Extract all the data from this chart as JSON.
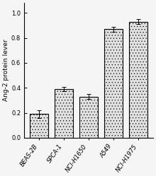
{
  "categories": [
    "BEAS-2B",
    "SPCA-1",
    "NCI-H1650",
    "A549",
    "NCI-H1975"
  ],
  "values": [
    0.19,
    0.39,
    0.33,
    0.87,
    0.93
  ],
  "errors": [
    0.03,
    0.018,
    0.018,
    0.02,
    0.018
  ],
  "ylabel": "Ang-2 protein lever",
  "ylim": [
    0.0,
    1.08
  ],
  "yticks": [
    0.0,
    0.2,
    0.4,
    0.6,
    0.8,
    1.0
  ],
  "bar_color": "#e0e0e0",
  "bar_edgecolor": "#000000",
  "bar_hatch": "....",
  "background_color": "#f5f5f5",
  "label_fontsize": 6.5,
  "tick_fontsize": 6.0,
  "bar_width": 0.72
}
